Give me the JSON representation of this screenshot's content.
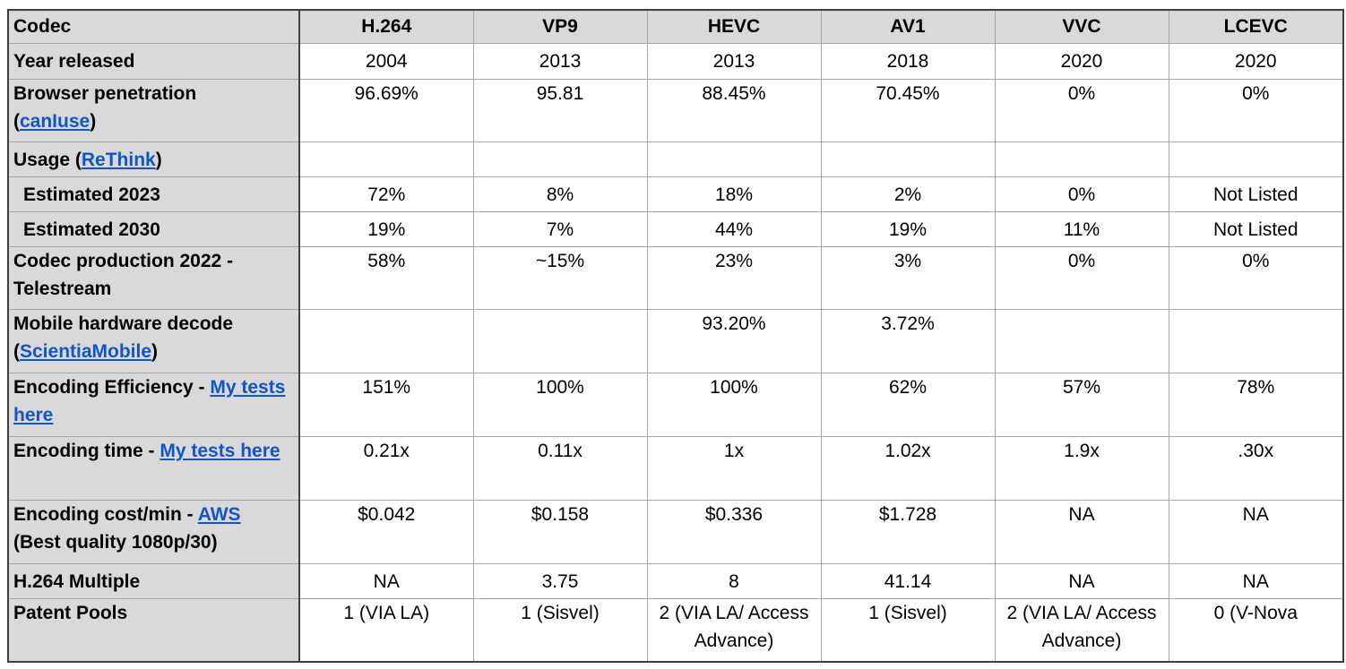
{
  "header": {
    "label": "Codec",
    "codecs": [
      "H.264",
      "VP9",
      "HEVC",
      "AV1",
      "VVC",
      "LCEVC"
    ]
  },
  "rows": {
    "year": {
      "label": "Year released",
      "values": [
        "2004",
        "2013",
        "2013",
        "2018",
        "2020",
        "2020"
      ]
    },
    "browser": {
      "label": "Browser penetration",
      "paren_open": "(",
      "link": "canIuse",
      "paren_close": ")",
      "values": [
        "96.69%",
        "95.81",
        "88.45%",
        "70.45%",
        "0%",
        "0%"
      ]
    },
    "usage": {
      "label": "Usage (",
      "link": "ReThink",
      "paren_close": ")"
    },
    "est2023": {
      "label": "Estimated 2023",
      "values": [
        "72%",
        "8%",
        "18%",
        "2%",
        "0%",
        "Not Listed"
      ]
    },
    "est2030": {
      "label": "Estimated 2030",
      "values": [
        "19%",
        "7%",
        "44%",
        "19%",
        "11%",
        "Not Listed"
      ]
    },
    "production": {
      "label_line1": "Codec production 2022 -",
      "label_line2": "Telestream",
      "values": [
        "58%",
        "~15%",
        "23%",
        "3%",
        "0%",
        "0%"
      ]
    },
    "mobile": {
      "label_line1": "Mobile hardware decode",
      "paren_open": "(",
      "link": "ScientiaMobile",
      "paren_close": ")",
      "values": [
        "",
        "",
        "93.20%",
        "3.72%",
        "",
        ""
      ]
    },
    "efficiency": {
      "label": "Encoding Efficiency - ",
      "link": "My tests here",
      "values": [
        "151%",
        "100%",
        "100%",
        "62%",
        "57%",
        "78%"
      ]
    },
    "time": {
      "label": "Encoding time - ",
      "link": "My tests here",
      "values": [
        "0.21x",
        "0.11x",
        "1x",
        "1.02x",
        "1.9x",
        ".30x"
      ]
    },
    "cost": {
      "label": "Encoding cost/min - ",
      "link": "AWS",
      "label_line2": "(Best quality 1080p/30)",
      "values": [
        "$0.042",
        "$0.158",
        "$0.336",
        "$1.728",
        "NA",
        "NA"
      ]
    },
    "multiple": {
      "label": "H.264 Multiple",
      "values": [
        "NA",
        "3.75",
        "8",
        "41.14",
        "NA",
        "NA"
      ]
    },
    "patents": {
      "label": "Patent Pools",
      "values": [
        "1 (VIA LA)",
        "1 (Sisvel)",
        "2 (VIA LA/ Access Advance)",
        "1 (Sisvel)",
        "2 (VIA LA/ Access Advance)",
        "0 (V-Nova"
      ]
    }
  }
}
